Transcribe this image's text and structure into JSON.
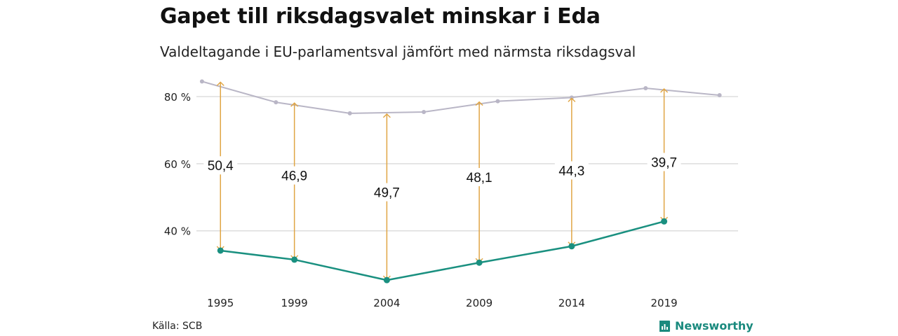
{
  "header": {
    "title": "Gapet till riksdagsvalet minskar i Eda",
    "subtitle": "Valdeltagande i EU-parlamentsval jämfört med närmsta riksdagsval"
  },
  "footer": {
    "source": "Källa: SCB",
    "brand": "Newsworthy"
  },
  "colors": {
    "eu": "#1a9080",
    "riksdag": "#b9b6c6",
    "arrow": "#e0a544",
    "grid": "#dddddd"
  },
  "chart_data": {
    "type": "line",
    "y_ticks": [
      {
        "value": 80,
        "label": "80 %"
      },
      {
        "value": 60,
        "label": "60 %"
      },
      {
        "value": 40,
        "label": "40 %"
      }
    ],
    "ylim": [
      22,
      90
    ],
    "xlim": [
      1993.7,
      2023
    ],
    "x_ticks": [
      1995,
      1999,
      2004,
      2009,
      2014,
      2019
    ],
    "series": [
      {
        "key": "riksdag",
        "x": [
          1994,
          1998,
          2002,
          2006,
          2010,
          2014,
          2018,
          2022
        ],
        "values": [
          84.5,
          78.3,
          75.0,
          75.4,
          78.6,
          79.7,
          82.5,
          80.4
        ]
      },
      {
        "key": "eu",
        "x": [
          1995,
          1999,
          2004,
          2009,
          2014,
          2019
        ],
        "values": [
          34.1,
          31.4,
          25.3,
          30.5,
          35.4,
          42.8
        ]
      }
    ],
    "gaps": [
      {
        "x": 1995,
        "label": "50,4",
        "top": 84.5,
        "bottom": 34.1,
        "label_y": 59.5
      },
      {
        "x": 1999,
        "label": "46,9",
        "top": 78.3,
        "bottom": 31.4,
        "label_y": 56.5
      },
      {
        "x": 2004,
        "label": "49,7",
        "top": 75.0,
        "bottom": 25.3,
        "label_y": 51.5
      },
      {
        "x": 2009,
        "label": "48,1",
        "top": 78.6,
        "bottom": 30.5,
        "label_y": 56.0
      },
      {
        "x": 2014,
        "label": "44,3",
        "top": 79.7,
        "bottom": 35.4,
        "label_y": 58.0
      },
      {
        "x": 2019,
        "label": "39,7",
        "top": 82.5,
        "bottom": 42.8,
        "label_y": 60.5
      }
    ]
  }
}
